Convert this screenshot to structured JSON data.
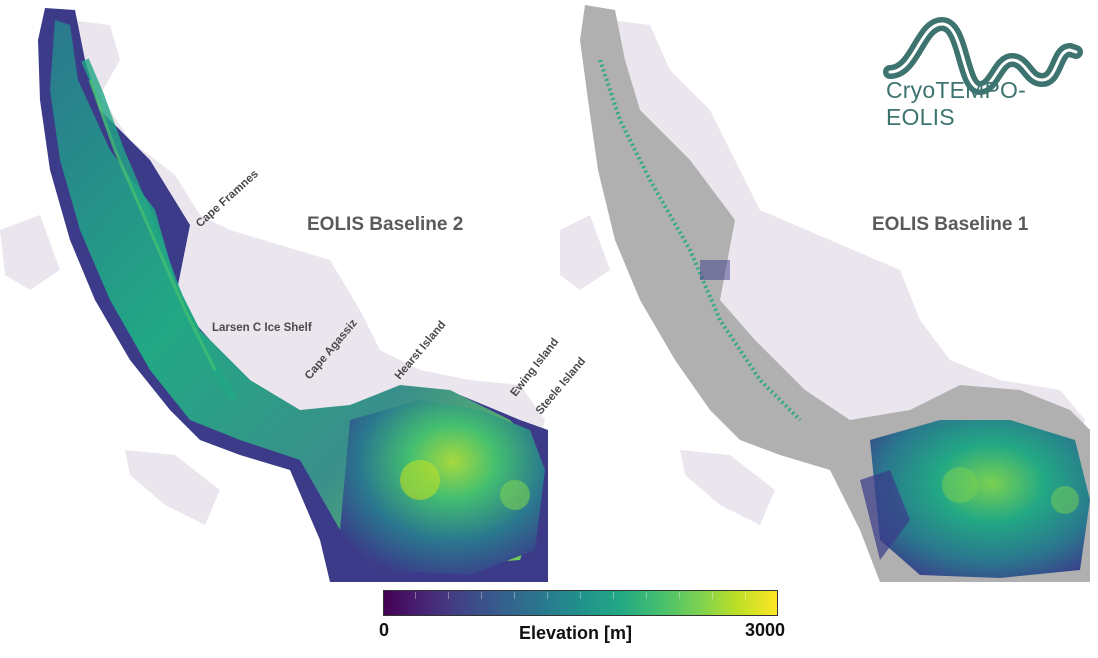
{
  "maps": {
    "left": {
      "title": "EOLIS Baseline 2"
    },
    "right": {
      "title": "EOLIS Baseline 1"
    }
  },
  "place_labels": {
    "cape_framnes": "Cape Framnes",
    "larsen_c": "Larsen C Ice Shelf",
    "cape_agassiz": "Cape Agassiz",
    "hearst_island": "Hearst Island",
    "ewing_island": "Ewing Island",
    "steele_island": "Steele Island"
  },
  "logo": {
    "text": "CryoTEMPO-EOLIS",
    "color": "#3d7470"
  },
  "colorbar": {
    "min": "0",
    "max": "3000",
    "label": "Elevation [m]",
    "colormap": "viridis",
    "colors": [
      "#440154",
      "#414487",
      "#2a788e",
      "#22a884",
      "#7ad151",
      "#fde725"
    ]
  },
  "palette": {
    "ice_shelf": "#ebe6ee",
    "no_data": "#b0b0b0"
  }
}
